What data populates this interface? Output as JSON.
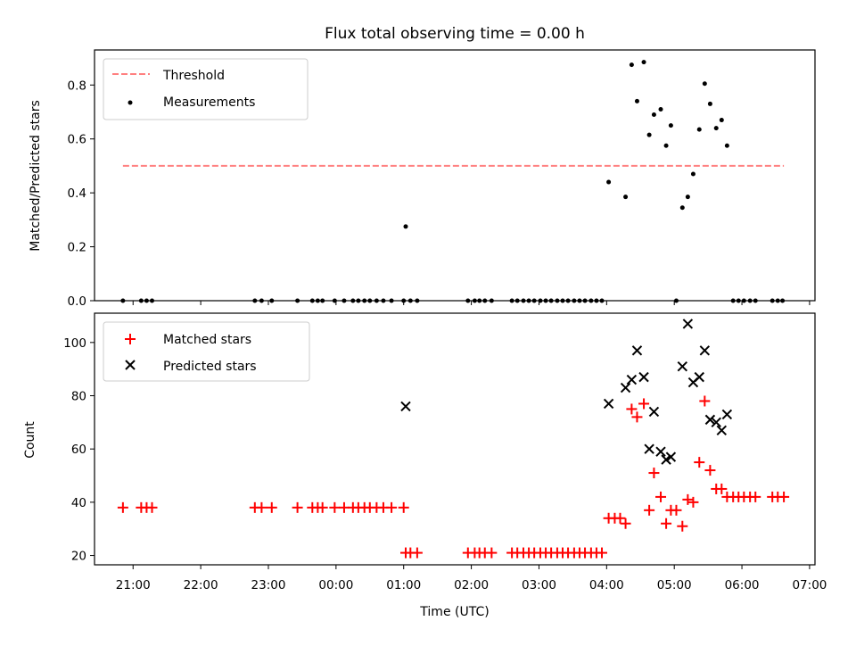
{
  "title": "Flux total observing time = 0.00 h",
  "colors": {
    "threshold": "#ff8080",
    "measurement": "#000000",
    "matched": "#ff0000",
    "predicted": "#000000"
  },
  "top_panel": {
    "ylabel": "Matched/Predicted stars",
    "yticks": [
      "0.0",
      "0.2",
      "0.4",
      "0.6",
      "0.8"
    ],
    "legend": {
      "threshold": "Threshold",
      "measurements": "Measurements",
      "placement": "upper-left"
    }
  },
  "bottom_panel": {
    "ylabel": "Count",
    "yticks": [
      "20",
      "40",
      "60",
      "80",
      "100"
    ],
    "xlabel": "Time (UTC)",
    "xticks": [
      "21:00",
      "22:00",
      "23:00",
      "00:00",
      "01:00",
      "02:00",
      "03:00",
      "04:00",
      "05:00",
      "06:00",
      "07:00"
    ],
    "legend": {
      "matched": "Matched stars",
      "predicted": "Predicted stars",
      "placement": "upper-left"
    }
  },
  "chart_data": [
    {
      "type": "scatter",
      "panel": "top",
      "title": "Flux total observing time = 0.00 h",
      "xlabel": "",
      "ylabel": "Matched/Predicted stars",
      "x_unit": "hours relative to 00:00 UTC",
      "xlim": [
        -3.57,
        7.08
      ],
      "ylim": [
        0,
        0.93
      ],
      "threshold": {
        "label": "Threshold",
        "y": 0.5,
        "x_range": [
          -3.15,
          6.62
        ]
      },
      "series": [
        {
          "name": "Measurements",
          "points": [
            [
              -3.15,
              0
            ],
            [
              -2.88,
              0
            ],
            [
              -2.8,
              0
            ],
            [
              -2.72,
              0
            ],
            [
              -1.2,
              0
            ],
            [
              -1.1,
              0
            ],
            [
              -0.95,
              0
            ],
            [
              -0.57,
              0
            ],
            [
              -0.35,
              0
            ],
            [
              -0.27,
              0
            ],
            [
              -0.2,
              0
            ],
            [
              -0.02,
              0
            ],
            [
              0.12,
              0
            ],
            [
              0.25,
              0
            ],
            [
              0.33,
              0
            ],
            [
              0.42,
              0
            ],
            [
              0.5,
              0
            ],
            [
              0.6,
              0
            ],
            [
              0.7,
              0
            ],
            [
              0.82,
              0
            ],
            [
              1.0,
              0
            ],
            [
              1.03,
              0.275
            ],
            [
              1.1,
              0
            ],
            [
              1.2,
              0
            ],
            [
              1.95,
              0
            ],
            [
              2.05,
              0
            ],
            [
              2.12,
              0
            ],
            [
              2.2,
              0
            ],
            [
              2.3,
              0
            ],
            [
              2.6,
              0
            ],
            [
              2.68,
              0
            ],
            [
              2.77,
              0
            ],
            [
              2.85,
              0
            ],
            [
              2.93,
              0
            ],
            [
              3.02,
              0
            ],
            [
              3.1,
              0
            ],
            [
              3.18,
              0
            ],
            [
              3.27,
              0
            ],
            [
              3.35,
              0
            ],
            [
              3.43,
              0
            ],
            [
              3.52,
              0
            ],
            [
              3.6,
              0
            ],
            [
              3.68,
              0
            ],
            [
              3.77,
              0
            ],
            [
              3.85,
              0
            ],
            [
              3.93,
              0
            ],
            [
              4.03,
              0.44
            ],
            [
              4.28,
              0.385
            ],
            [
              4.37,
              0.875
            ],
            [
              4.45,
              0.74
            ],
            [
              4.55,
              0.885
            ],
            [
              4.63,
              0.615
            ],
            [
              4.7,
              0.69
            ],
            [
              4.8,
              0.71
            ],
            [
              4.88,
              0.575
            ],
            [
              4.95,
              0.65
            ],
            [
              5.03,
              0
            ],
            [
              5.12,
              0.345
            ],
            [
              5.2,
              0.385
            ],
            [
              5.28,
              0.47
            ],
            [
              5.37,
              0.635
            ],
            [
              5.45,
              0.805
            ],
            [
              5.53,
              0.73
            ],
            [
              5.62,
              0.64
            ],
            [
              5.7,
              0.67
            ],
            [
              5.78,
              0.575
            ],
            [
              5.87,
              0
            ],
            [
              5.95,
              0
            ],
            [
              6.03,
              0
            ],
            [
              6.12,
              0
            ],
            [
              6.2,
              0
            ],
            [
              6.45,
              0
            ],
            [
              6.53,
              0
            ],
            [
              6.6,
              0
            ]
          ]
        }
      ]
    },
    {
      "type": "scatter",
      "panel": "bottom",
      "xlabel": "Time (UTC)",
      "ylabel": "Count",
      "x_unit": "hours relative to 00:00 UTC",
      "xlim": [
        -3.57,
        7.08
      ],
      "ylim": [
        16.5,
        111
      ],
      "series": [
        {
          "name": "Matched stars",
          "marker": "plus",
          "points": [
            [
              -3.15,
              38
            ],
            [
              -2.88,
              38
            ],
            [
              -2.8,
              38
            ],
            [
              -2.72,
              38
            ],
            [
              -1.2,
              38
            ],
            [
              -1.1,
              38
            ],
            [
              -0.95,
              38
            ],
            [
              -0.57,
              38
            ],
            [
              -0.35,
              38
            ],
            [
              -0.27,
              38
            ],
            [
              -0.2,
              38
            ],
            [
              -0.02,
              38
            ],
            [
              0.12,
              38
            ],
            [
              0.25,
              38
            ],
            [
              0.33,
              38
            ],
            [
              0.42,
              38
            ],
            [
              0.5,
              38
            ],
            [
              0.6,
              38
            ],
            [
              0.7,
              38
            ],
            [
              0.82,
              38
            ],
            [
              1.0,
              38
            ],
            [
              1.03,
              21
            ],
            [
              1.1,
              21
            ],
            [
              1.2,
              21
            ],
            [
              1.95,
              21
            ],
            [
              2.05,
              21
            ],
            [
              2.12,
              21
            ],
            [
              2.2,
              21
            ],
            [
              2.3,
              21
            ],
            [
              2.6,
              21
            ],
            [
              2.68,
              21
            ],
            [
              2.77,
              21
            ],
            [
              2.85,
              21
            ],
            [
              2.93,
              21
            ],
            [
              3.02,
              21
            ],
            [
              3.1,
              21
            ],
            [
              3.18,
              21
            ],
            [
              3.27,
              21
            ],
            [
              3.35,
              21
            ],
            [
              3.43,
              21
            ],
            [
              3.52,
              21
            ],
            [
              3.6,
              21
            ],
            [
              3.68,
              21
            ],
            [
              3.77,
              21
            ],
            [
              3.85,
              21
            ],
            [
              3.93,
              21
            ],
            [
              4.03,
              34
            ],
            [
              4.12,
              34
            ],
            [
              4.2,
              34
            ],
            [
              4.28,
              32
            ],
            [
              4.37,
              75
            ],
            [
              4.45,
              72
            ],
            [
              4.55,
              77
            ],
            [
              4.63,
              37
            ],
            [
              4.7,
              51
            ],
            [
              4.8,
              42
            ],
            [
              4.88,
              32
            ],
            [
              4.95,
              37
            ],
            [
              5.03,
              37
            ],
            [
              5.12,
              31
            ],
            [
              5.2,
              41
            ],
            [
              5.28,
              40
            ],
            [
              5.37,
              55
            ],
            [
              5.45,
              78
            ],
            [
              5.53,
              52
            ],
            [
              5.62,
              45
            ],
            [
              5.7,
              45
            ],
            [
              5.78,
              42
            ],
            [
              5.87,
              42
            ],
            [
              5.95,
              42
            ],
            [
              6.03,
              42
            ],
            [
              6.12,
              42
            ],
            [
              6.2,
              42
            ],
            [
              6.45,
              42
            ],
            [
              6.53,
              42
            ],
            [
              6.62,
              42
            ]
          ]
        },
        {
          "name": "Predicted stars",
          "marker": "x",
          "points": [
            [
              1.03,
              76
            ],
            [
              4.03,
              77
            ],
            [
              4.28,
              83
            ],
            [
              4.37,
              86
            ],
            [
              4.45,
              97
            ],
            [
              4.55,
              87
            ],
            [
              4.63,
              60
            ],
            [
              4.7,
              74
            ],
            [
              4.8,
              59
            ],
            [
              4.88,
              56
            ],
            [
              4.95,
              57
            ],
            [
              5.12,
              91
            ],
            [
              5.2,
              107
            ],
            [
              5.28,
              85
            ],
            [
              5.37,
              87
            ],
            [
              5.45,
              97
            ],
            [
              5.53,
              71
            ],
            [
              5.62,
              70
            ],
            [
              5.7,
              67
            ],
            [
              5.78,
              73
            ]
          ]
        }
      ]
    }
  ]
}
